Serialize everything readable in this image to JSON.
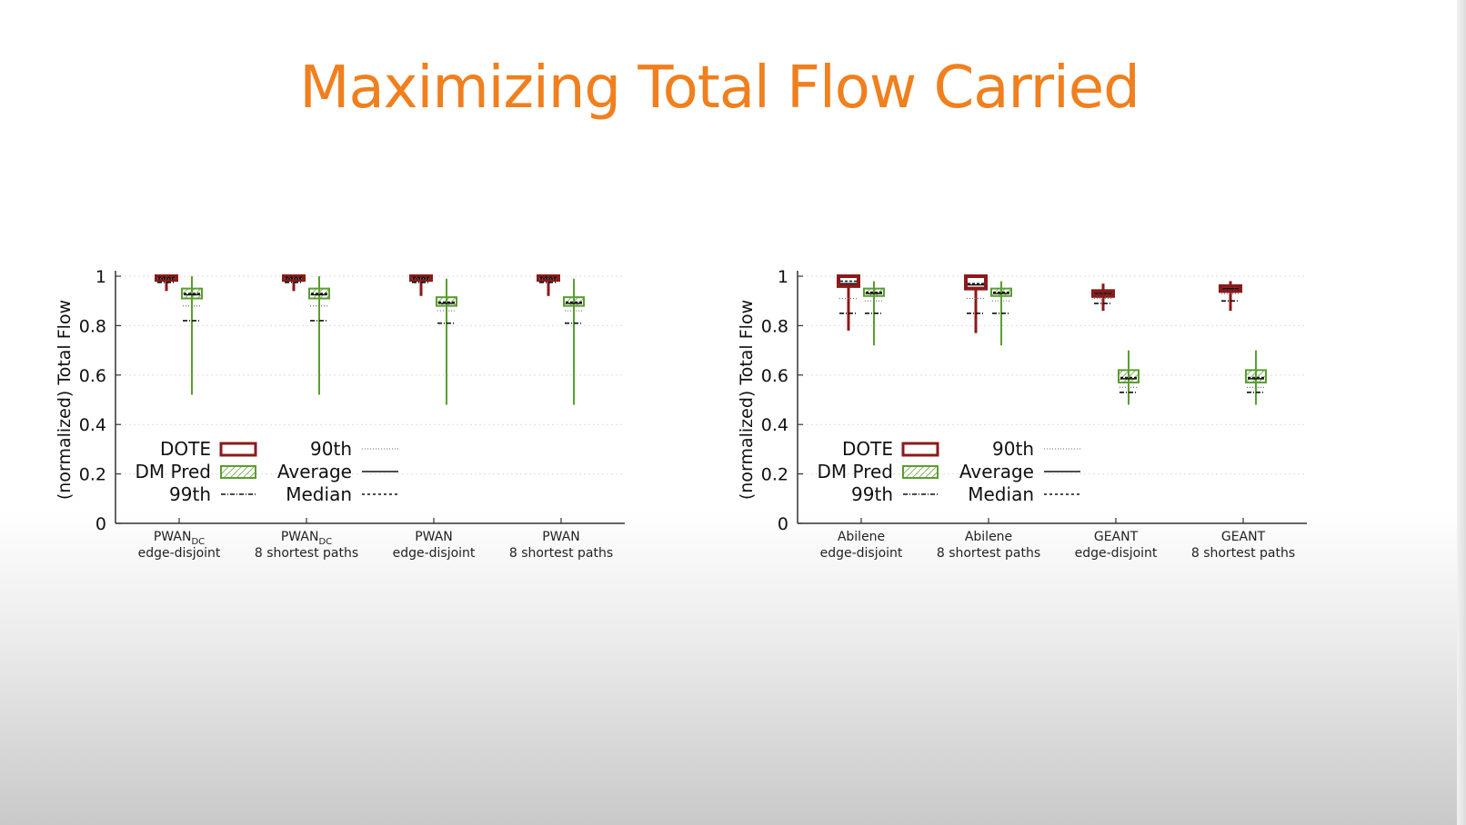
{
  "slide": {
    "title": "Maximizing Total Flow Carried"
  },
  "colors": {
    "title": "#f07f1e",
    "dote": "#8b1a1a",
    "dm_pred": "#5a9e2f"
  },
  "chart_data": [
    {
      "type": "box",
      "ylabel": "(normalized) Total Flow",
      "ylim": [
        0,
        1
      ],
      "yticks": [
        "0",
        "0.2",
        "0.4",
        "0.6",
        "0.8",
        "1"
      ],
      "categories": [
        {
          "main": "PWAN",
          "sub": "DC",
          "line2": "edge-disjoint"
        },
        {
          "main": "PWAN",
          "sub": "DC",
          "line2": "8 shortest paths"
        },
        {
          "main": "PWAN",
          "sub": "",
          "line2": "edge-disjoint"
        },
        {
          "main": "PWAN",
          "sub": "",
          "line2": "8 shortest paths"
        }
      ],
      "legend": {
        "series": [
          "DOTE",
          "DM Pred"
        ],
        "stats": [
          "99th",
          "90th",
          "Average",
          "Median"
        ]
      },
      "series": [
        {
          "name": "DOTE",
          "boxes": [
            {
              "min": 0.94,
              "q1": 0.985,
              "median": 0.995,
              "q3": 1.0,
              "max": 1.0,
              "mean": 0.99,
              "p90": 0.99,
              "p99": 0.975
            },
            {
              "min": 0.94,
              "q1": 0.985,
              "median": 0.995,
              "q3": 1.0,
              "max": 1.0,
              "mean": 0.99,
              "p90": 0.99,
              "p99": 0.975
            },
            {
              "min": 0.92,
              "q1": 0.985,
              "median": 0.995,
              "q3": 1.0,
              "max": 1.0,
              "mean": 0.99,
              "p90": 0.99,
              "p99": 0.975
            },
            {
              "min": 0.92,
              "q1": 0.985,
              "median": 0.995,
              "q3": 1.0,
              "max": 1.0,
              "mean": 0.99,
              "p90": 0.99,
              "p99": 0.975
            }
          ]
        },
        {
          "name": "DM Pred",
          "boxes": [
            {
              "min": 0.52,
              "q1": 0.91,
              "median": 0.93,
              "q3": 0.95,
              "max": 1.0,
              "mean": 0.925,
              "p90": 0.88,
              "p99": 0.82
            },
            {
              "min": 0.52,
              "q1": 0.91,
              "median": 0.93,
              "q3": 0.95,
              "max": 1.0,
              "mean": 0.925,
              "p90": 0.88,
              "p99": 0.82
            },
            {
              "min": 0.48,
              "q1": 0.88,
              "median": 0.895,
              "q3": 0.915,
              "max": 0.99,
              "mean": 0.89,
              "p90": 0.86,
              "p99": 0.81
            },
            {
              "min": 0.48,
              "q1": 0.88,
              "median": 0.895,
              "q3": 0.915,
              "max": 0.99,
              "mean": 0.89,
              "p90": 0.86,
              "p99": 0.81
            }
          ]
        }
      ]
    },
    {
      "type": "box",
      "ylabel": "(normalized) Total Flow",
      "ylim": [
        0,
        1
      ],
      "yticks": [
        "0",
        "0.2",
        "0.4",
        "0.6",
        "0.8",
        "1"
      ],
      "categories": [
        {
          "main": "Abilene",
          "sub": "",
          "line2": "edge-disjoint"
        },
        {
          "main": "Abilene",
          "sub": "",
          "line2": "8 shortest paths"
        },
        {
          "main": "GEANT",
          "sub": "",
          "line2": "edge-disjoint"
        },
        {
          "main": "GEANT",
          "sub": "",
          "line2": "8 shortest paths"
        }
      ],
      "legend": {
        "series": [
          "DOTE",
          "DM Pred"
        ],
        "stats": [
          "99th",
          "90th",
          "Average",
          "Median"
        ]
      },
      "series": [
        {
          "name": "DOTE",
          "boxes": [
            {
              "min": 0.78,
              "q1": 0.96,
              "median": 0.98,
              "q3": 1.0,
              "max": 1.0,
              "mean": 0.97,
              "p90": 0.91,
              "p99": 0.85
            },
            {
              "min": 0.77,
              "q1": 0.95,
              "median": 0.97,
              "q3": 1.0,
              "max": 1.0,
              "mean": 0.965,
              "p90": 0.91,
              "p99": 0.85
            },
            {
              "min": 0.86,
              "q1": 0.92,
              "median": 0.93,
              "q3": 0.94,
              "max": 0.97,
              "mean": 0.93,
              "p90": 0.91,
              "p99": 0.89
            },
            {
              "min": 0.86,
              "q1": 0.94,
              "median": 0.95,
              "q3": 0.96,
              "max": 0.98,
              "mean": 0.95,
              "p90": 0.93,
              "p99": 0.9
            }
          ]
        },
        {
          "name": "DM Pred",
          "boxes": [
            {
              "min": 0.72,
              "q1": 0.92,
              "median": 0.935,
              "q3": 0.95,
              "max": 0.98,
              "mean": 0.93,
              "p90": 0.9,
              "p99": 0.85
            },
            {
              "min": 0.72,
              "q1": 0.92,
              "median": 0.935,
              "q3": 0.95,
              "max": 0.98,
              "mean": 0.93,
              "p90": 0.9,
              "p99": 0.85
            },
            {
              "min": 0.48,
              "q1": 0.57,
              "median": 0.59,
              "q3": 0.62,
              "max": 0.7,
              "mean": 0.585,
              "p90": 0.55,
              "p99": 0.53
            },
            {
              "min": 0.48,
              "q1": 0.57,
              "median": 0.59,
              "q3": 0.62,
              "max": 0.7,
              "mean": 0.585,
              "p90": 0.55,
              "p99": 0.53
            }
          ]
        }
      ]
    }
  ]
}
